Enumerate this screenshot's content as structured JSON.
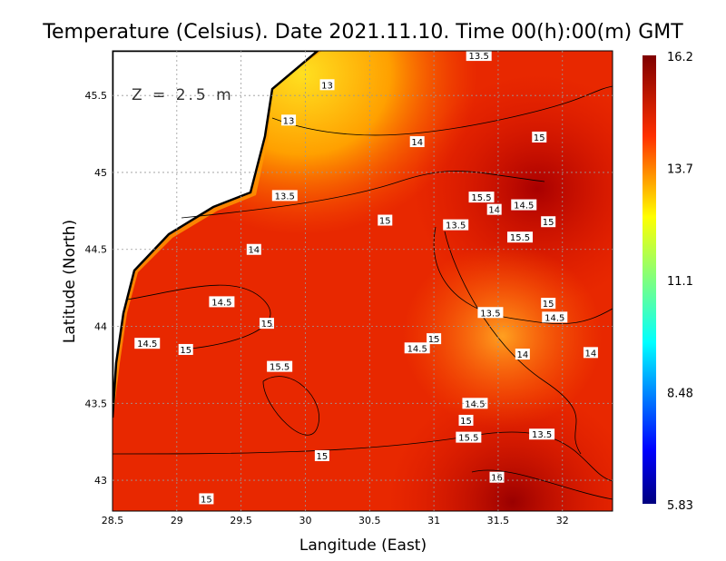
{
  "title": "Temperature (Celsius). Date 2021.11.10. Time 00(h):00(m) GMT",
  "depth_label": "Z = 2.5 m",
  "chart_data": {
    "type": "heatmap",
    "xlabel": "Langitude (East)",
    "ylabel": "Latitude (North)",
    "xlim": [
      28.5,
      32.39
    ],
    "ylim": [
      42.8,
      45.79
    ],
    "xticks": [
      "28.5",
      "29",
      "29.5",
      "30",
      "30.5",
      "31",
      "31.5",
      "32"
    ],
    "yticks": [
      "43",
      "43.5",
      "44",
      "44.5",
      "45",
      "45.5"
    ],
    "grid": true,
    "colorbar": {
      "min": 5.83,
      "max": 16.2,
      "ticks": [
        "16.2",
        "13.7",
        "11.1",
        "8.48",
        "5.83"
      ],
      "colormap": "jet"
    },
    "contour_labels": [
      {
        "v": "13.5",
        "lon": 31.35,
        "lat": 45.76
      },
      {
        "v": "13",
        "lon": 30.17,
        "lat": 45.57
      },
      {
        "v": "13",
        "lon": 29.87,
        "lat": 45.34
      },
      {
        "v": "14",
        "lon": 30.87,
        "lat": 45.2
      },
      {
        "v": "15",
        "lon": 31.82,
        "lat": 45.23
      },
      {
        "v": "13.5",
        "lon": 29.84,
        "lat": 44.85
      },
      {
        "v": "15.5",
        "lon": 31.37,
        "lat": 44.84
      },
      {
        "v": "14.5",
        "lon": 31.7,
        "lat": 44.79
      },
      {
        "v": "14",
        "lon": 31.47,
        "lat": 44.76
      },
      {
        "v": "15",
        "lon": 30.62,
        "lat": 44.69
      },
      {
        "v": "13.5",
        "lon": 31.17,
        "lat": 44.66
      },
      {
        "v": "15",
        "lon": 31.89,
        "lat": 44.68
      },
      {
        "v": "15.5",
        "lon": 31.67,
        "lat": 44.58
      },
      {
        "v": "14",
        "lon": 29.6,
        "lat": 44.5
      },
      {
        "v": "14.5",
        "lon": 29.35,
        "lat": 44.16
      },
      {
        "v": "15",
        "lon": 31.89,
        "lat": 44.15
      },
      {
        "v": "13.5",
        "lon": 31.44,
        "lat": 44.09
      },
      {
        "v": "14.5",
        "lon": 31.94,
        "lat": 44.06
      },
      {
        "v": "15",
        "lon": 29.7,
        "lat": 44.02
      },
      {
        "v": "14.5",
        "lon": 28.77,
        "lat": 43.89
      },
      {
        "v": "15",
        "lon": 29.07,
        "lat": 43.85
      },
      {
        "v": "15",
        "lon": 31.0,
        "lat": 43.92
      },
      {
        "v": "14.5",
        "lon": 30.87,
        "lat": 43.86
      },
      {
        "v": "14",
        "lon": 31.69,
        "lat": 43.82
      },
      {
        "v": "14",
        "lon": 32.22,
        "lat": 43.83
      },
      {
        "v": "15.5",
        "lon": 29.8,
        "lat": 43.74
      },
      {
        "v": "14.5",
        "lon": 31.32,
        "lat": 43.5
      },
      {
        "v": "15",
        "lon": 31.25,
        "lat": 43.39
      },
      {
        "v": "13.5",
        "lon": 31.84,
        "lat": 43.3
      },
      {
        "v": "15.5",
        "lon": 31.27,
        "lat": 43.28
      },
      {
        "v": "15",
        "lon": 30.13,
        "lat": 43.16
      },
      {
        "v": "16",
        "lon": 31.49,
        "lat": 43.02
      },
      {
        "v": "15",
        "lon": 29.23,
        "lat": 42.88
      }
    ]
  }
}
